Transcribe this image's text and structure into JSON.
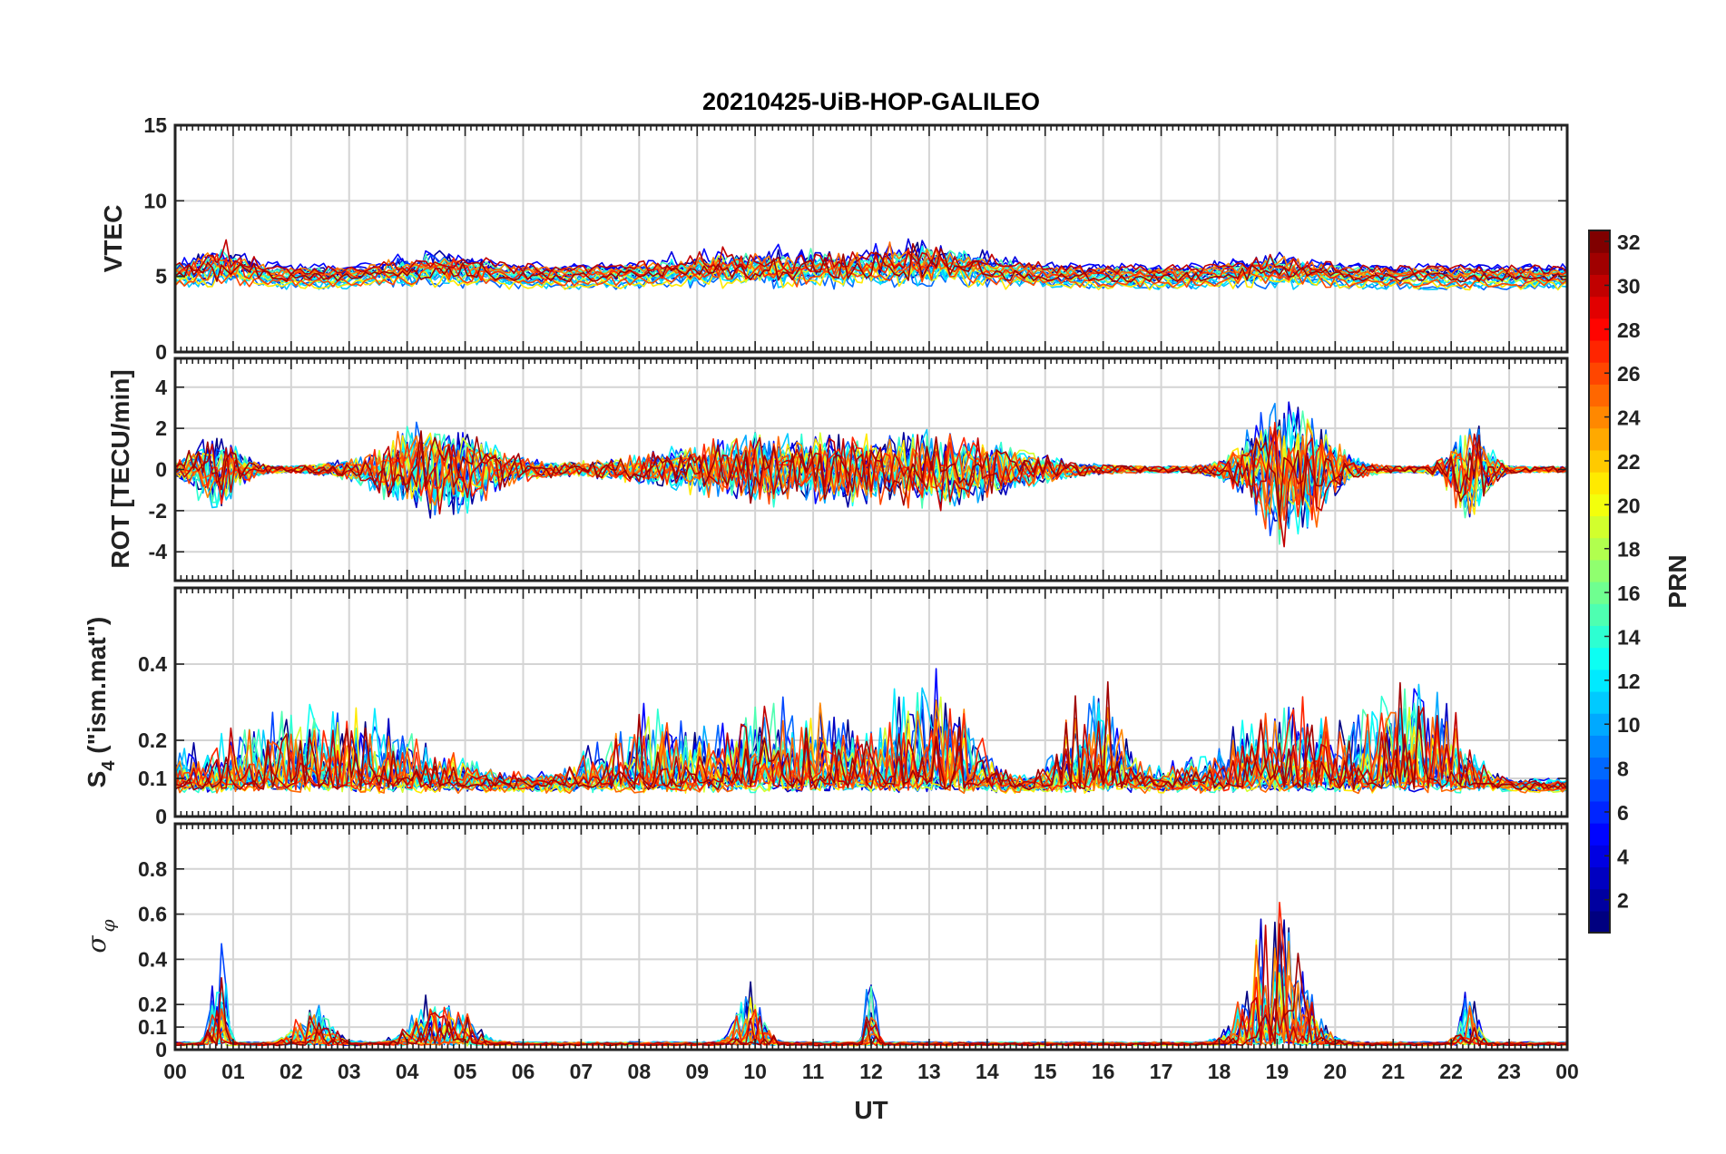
{
  "chart_data": {
    "type": "line",
    "title": "20210425-UiB-HOP-GALILEO",
    "xlabel": "UT",
    "x_range": [
      0,
      24
    ],
    "x_tick_labels": [
      "00",
      "01",
      "02",
      "03",
      "04",
      "05",
      "06",
      "07",
      "08",
      "09",
      "10",
      "11",
      "12",
      "13",
      "14",
      "15",
      "16",
      "17",
      "18",
      "19",
      "20",
      "21",
      "22",
      "23",
      "00"
    ],
    "colorbar": {
      "label": "PRN",
      "range": [
        1,
        32
      ],
      "tick_labels": [
        "2",
        "4",
        "6",
        "8",
        "10",
        "12",
        "14",
        "16",
        "18",
        "20",
        "22",
        "24",
        "26",
        "28",
        "30",
        "32"
      ],
      "colormap": "jet"
    },
    "prns": [
      1,
      2,
      3,
      4,
      5,
      7,
      8,
      9,
      10,
      11,
      12,
      13,
      14,
      15,
      19,
      21,
      24,
      25,
      26,
      27,
      30,
      31
    ],
    "panels": [
      {
        "name": "vtec",
        "ylabel": "VTEC",
        "ylim": [
          0,
          15
        ],
        "y_ticks": [
          0,
          5,
          10,
          15
        ],
        "y_tick_labels": [
          "0",
          "5",
          "10",
          "15"
        ],
        "baseline": 5,
        "spread": 0.6,
        "events": [
          {
            "t": 0.8,
            "amp": 2.5,
            "w": 0.6
          },
          {
            "t": 4.6,
            "amp": 2.0,
            "w": 1.0
          },
          {
            "t": 10.0,
            "amp": 2.0,
            "w": 2.0
          },
          {
            "t": 13.0,
            "amp": 2.5,
            "w": 1.5
          },
          {
            "t": 19.0,
            "amp": 1.5,
            "w": 1.0
          }
        ]
      },
      {
        "name": "rot",
        "ylabel": "ROT [TECU/min]",
        "ylim": [
          -5.4,
          5.4
        ],
        "y_ticks": [
          -4,
          -2,
          0,
          2,
          4
        ],
        "y_tick_labels": [
          "-4",
          "-2",
          "0",
          "2",
          "4"
        ],
        "baseline": 0,
        "spread": 0.25,
        "events": [
          {
            "t": 0.7,
            "amp": 2.0,
            "w": 0.5
          },
          {
            "t": 4.5,
            "amp": 2.5,
            "w": 1.2
          },
          {
            "t": 10.5,
            "amp": 1.8,
            "w": 2.5
          },
          {
            "t": 13.5,
            "amp": 1.5,
            "w": 1.5
          },
          {
            "t": 19.2,
            "amp": 4.0,
            "w": 0.8
          },
          {
            "t": 22.3,
            "amp": 2.5,
            "w": 0.4
          }
        ]
      },
      {
        "name": "s4",
        "ylabel": "S4 (\"ism.mat\")",
        "ylabel_main": "S",
        "ylabel_sub": "4",
        "ylabel_rest": " (\"ism.mat\")",
        "ylim": [
          0,
          0.6
        ],
        "y_ticks": [
          0,
          0.1,
          0.2,
          0.4
        ],
        "y_tick_labels": [
          "0",
          "0.1",
          "0.2",
          "0.4"
        ],
        "baseline": 0.07,
        "spread": 0.02,
        "events": [
          {
            "t": 2.5,
            "amp": 0.25,
            "w": 2.5
          },
          {
            "t": 8.0,
            "amp": 0.2,
            "w": 1.0
          },
          {
            "t": 10.5,
            "amp": 0.25,
            "w": 2.0
          },
          {
            "t": 13.0,
            "amp": 0.3,
            "w": 1.0
          },
          {
            "t": 15.8,
            "amp": 0.35,
            "w": 0.6
          },
          {
            "t": 19.5,
            "amp": 0.25,
            "w": 2.0
          },
          {
            "t": 21.5,
            "amp": 0.3,
            "w": 0.8
          }
        ]
      },
      {
        "name": "sigma",
        "ylabel": "σ φ",
        "ylabel_main": "σ",
        "ylabel_sub": "φ",
        "ylim": [
          0,
          1
        ],
        "y_ticks": [
          0,
          0.1,
          0.2,
          0.4,
          0.6,
          0.8
        ],
        "y_tick_labels": [
          "0",
          "0.1",
          "0.2",
          "0.4",
          "0.6",
          "0.8"
        ],
        "baseline": 0.02,
        "spread": 0.01,
        "events": [
          {
            "t": 0.75,
            "amp": 0.7,
            "w": 0.15
          },
          {
            "t": 2.4,
            "amp": 0.25,
            "w": 0.4
          },
          {
            "t": 4.6,
            "amp": 0.3,
            "w": 0.6
          },
          {
            "t": 9.9,
            "amp": 0.35,
            "w": 0.3
          },
          {
            "t": 12.0,
            "amp": 0.5,
            "w": 0.1
          },
          {
            "t": 19.0,
            "amp": 0.8,
            "w": 0.6
          },
          {
            "t": 22.3,
            "amp": 0.3,
            "w": 0.2
          }
        ]
      }
    ]
  }
}
